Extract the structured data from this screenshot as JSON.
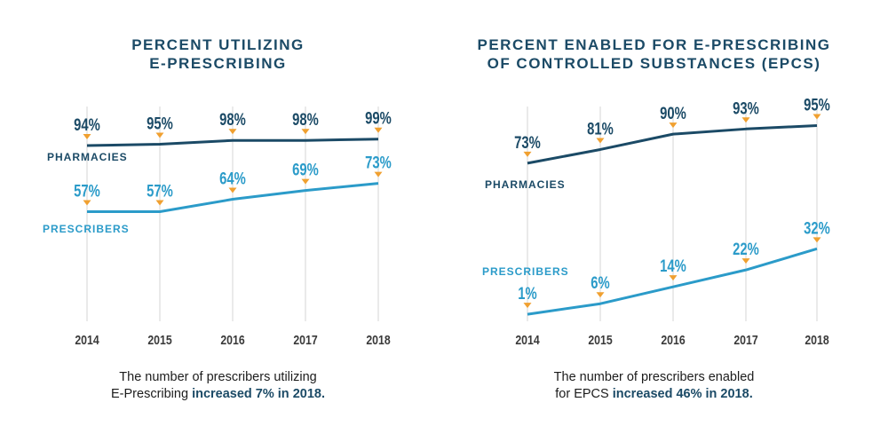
{
  "colors": {
    "pharmacies": "#1b4a66",
    "prescribers": "#2b9bc9",
    "marker": "#f0a030",
    "grid": "#d6d6d6",
    "axis_text": "#3a3a3a"
  },
  "chart_data": [
    {
      "type": "line",
      "title_lines": [
        "PERCENT UTILIZING",
        "E-PRESCRIBING"
      ],
      "categories": [
        "2014",
        "2015",
        "2016",
        "2017",
        "2018"
      ],
      "series": [
        {
          "name": "PHARMACIES",
          "values": [
            94,
            95,
            98,
            98,
            99
          ],
          "labels": [
            "94%",
            "95%",
            "98%",
            "98%",
            "99%"
          ]
        },
        {
          "name": "PRESCRIBERS",
          "values": [
            57,
            57,
            64,
            69,
            73
          ],
          "labels": [
            "57%",
            "57%",
            "64%",
            "69%",
            "73%"
          ]
        }
      ],
      "caption": {
        "line1": "The number of prescribers utilizing",
        "line2_plain": "E-Prescribing ",
        "line2_bold": "increased 7% in 2018."
      }
    },
    {
      "type": "line",
      "title_lines": [
        "PERCENT ENABLED FOR E-PRESCRIBING",
        "OF CONTROLLED SUBSTANCES (EPCS)"
      ],
      "categories": [
        "2014",
        "2015",
        "2016",
        "2017",
        "2018"
      ],
      "series": [
        {
          "name": "PHARMACIES",
          "values": [
            73,
            81,
            90,
            93,
            95
          ],
          "labels": [
            "73%",
            "81%",
            "90%",
            "93%",
            "95%"
          ]
        },
        {
          "name": "PRESCRIBERS",
          "values": [
            1,
            6,
            14,
            22,
            32
          ],
          "labels": [
            "1%",
            "6%",
            "14%",
            "22%",
            "32%"
          ]
        }
      ],
      "caption": {
        "line1": "The number of prescribers enabled",
        "line2_plain": "for EPCS ",
        "line2_bold": "increased 46% in 2018."
      }
    }
  ]
}
